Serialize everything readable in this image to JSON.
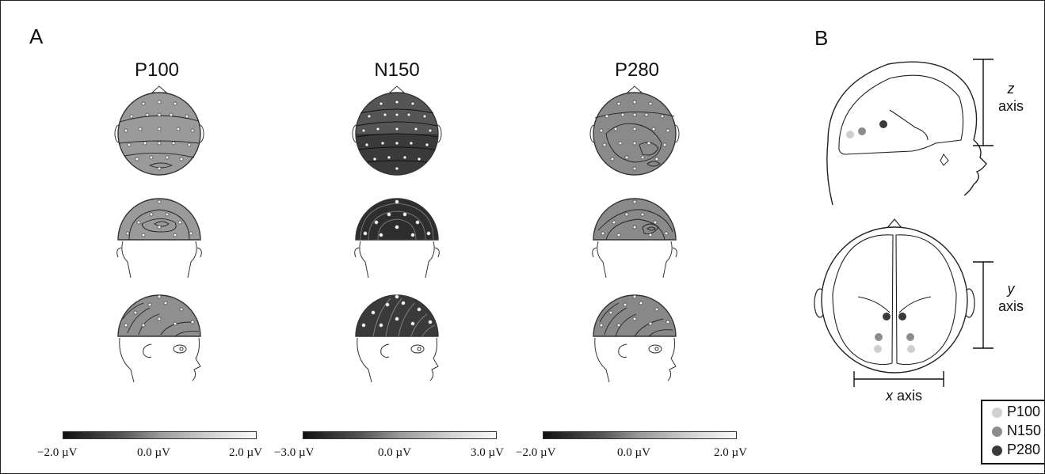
{
  "panel_a": {
    "label": "A",
    "columns": [
      {
        "title": "P100",
        "fill": "#9a9a9a",
        "colorbar": {
          "min": "−2.0 µV",
          "mid": "0.0 µV",
          "max": "2.0 µV"
        }
      },
      {
        "title": "N150",
        "fill": "#3a3a3a",
        "colorbar": {
          "min": "−3.0 µV",
          "mid": "0.0 µV",
          "max": "3.0 µV"
        }
      },
      {
        "title": "P280",
        "fill": "#8a8a8a",
        "colorbar": {
          "min": "−2.0 µV",
          "mid": "0.0 µV",
          "max": "2.0 µV"
        }
      }
    ]
  },
  "panel_b": {
    "label": "B",
    "z_axis": {
      "var": "z",
      "word": "axis"
    },
    "y_axis": {
      "var": "y",
      "word": "axis"
    },
    "x_axis": {
      "var": "x",
      "word": "axis"
    },
    "legend": [
      {
        "label": "P100",
        "color": "#cfcfcf"
      },
      {
        "label": "N150",
        "color": "#8c8c8c"
      },
      {
        "label": "P280",
        "color": "#3a3a3a"
      }
    ]
  }
}
